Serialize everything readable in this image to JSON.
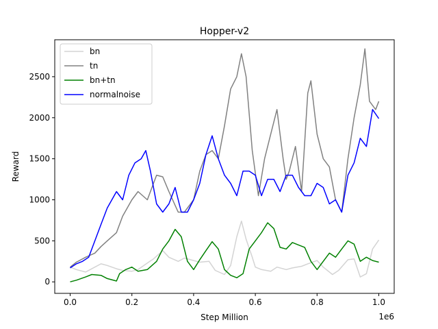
{
  "chart_data": {
    "type": "line",
    "title": "Hopper-v2",
    "xlabel": "Step Million",
    "ylabel": "Reward",
    "x_offset_label": "1e6",
    "xlim": [
      -0.05,
      1.05
    ],
    "ylim": [
      -140,
      2950
    ],
    "xticks": [
      0.0,
      0.2,
      0.4,
      0.6,
      0.8,
      1.0
    ],
    "xtick_labels": [
      "0.0",
      "0.2",
      "0.4",
      "0.6",
      "0.8",
      "1.0"
    ],
    "yticks": [
      0,
      500,
      1000,
      1500,
      2000,
      2500
    ],
    "ytick_labels": [
      "0",
      "500",
      "1000",
      "1500",
      "2000",
      "2500"
    ],
    "legend_position": "upper-left",
    "grid": false,
    "series": [
      {
        "name": "bn",
        "color": "#d3d3d3",
        "x": [
          0.0,
          0.02,
          0.05,
          0.08,
          0.1,
          0.12,
          0.15,
          0.17,
          0.2,
          0.22,
          0.25,
          0.27,
          0.3,
          0.32,
          0.35,
          0.37,
          0.4,
          0.42,
          0.45,
          0.47,
          0.5,
          0.52,
          0.54,
          0.555,
          0.57,
          0.59,
          0.6,
          0.62,
          0.65,
          0.67,
          0.7,
          0.72,
          0.75,
          0.77,
          0.8,
          0.82,
          0.85,
          0.87,
          0.9,
          0.92,
          0.94,
          0.96,
          0.98,
          1.0
        ],
        "y": [
          180,
          150,
          120,
          180,
          220,
          200,
          160,
          140,
          130,
          150,
          230,
          280,
          380,
          300,
          250,
          290,
          260,
          240,
          250,
          140,
          90,
          200,
          550,
          740,
          520,
          300,
          180,
          150,
          130,
          180,
          150,
          170,
          190,
          220,
          260,
          180,
          90,
          140,
          270,
          280,
          60,
          100,
          400,
          510
        ]
      },
      {
        "name": "tn",
        "color": "#808080",
        "x": [
          0.0,
          0.02,
          0.05,
          0.08,
          0.1,
          0.12,
          0.15,
          0.17,
          0.2,
          0.22,
          0.25,
          0.27,
          0.28,
          0.3,
          0.32,
          0.35,
          0.37,
          0.4,
          0.42,
          0.44,
          0.46,
          0.48,
          0.5,
          0.52,
          0.54,
          0.555,
          0.57,
          0.59,
          0.61,
          0.63,
          0.65,
          0.67,
          0.69,
          0.7,
          0.71,
          0.73,
          0.75,
          0.77,
          0.78,
          0.8,
          0.82,
          0.84,
          0.86,
          0.88,
          0.9,
          0.92,
          0.94,
          0.955,
          0.97,
          0.99,
          1.0
        ],
        "y": [
          180,
          240,
          300,
          350,
          430,
          500,
          600,
          800,
          1000,
          1100,
          1000,
          1200,
          1300,
          1280,
          1100,
          850,
          850,
          1000,
          1350,
          1550,
          1600,
          1500,
          1900,
          2350,
          2500,
          2780,
          2500,
          1600,
          1050,
          1500,
          1800,
          2100,
          1500,
          1250,
          1350,
          1650,
          1100,
          2300,
          2450,
          1800,
          1500,
          1400,
          1000,
          850,
          1500,
          2000,
          2400,
          2840,
          2200,
          2100,
          2200
        ]
      },
      {
        "name": "bn+tn",
        "color": "#008000",
        "x": [
          0.0,
          0.02,
          0.05,
          0.07,
          0.1,
          0.12,
          0.15,
          0.16,
          0.18,
          0.2,
          0.22,
          0.25,
          0.28,
          0.3,
          0.32,
          0.34,
          0.36,
          0.38,
          0.4,
          0.42,
          0.44,
          0.46,
          0.48,
          0.5,
          0.52,
          0.54,
          0.56,
          0.58,
          0.6,
          0.62,
          0.64,
          0.66,
          0.68,
          0.7,
          0.72,
          0.74,
          0.76,
          0.78,
          0.8,
          0.82,
          0.84,
          0.86,
          0.88,
          0.9,
          0.92,
          0.94,
          0.96,
          0.98,
          1.0
        ],
        "y": [
          0,
          20,
          60,
          90,
          80,
          40,
          10,
          100,
          150,
          180,
          130,
          150,
          250,
          400,
          500,
          640,
          550,
          250,
          150,
          270,
          380,
          490,
          400,
          150,
          80,
          50,
          100,
          400,
          500,
          600,
          720,
          650,
          420,
          400,
          480,
          450,
          420,
          250,
          150,
          250,
          350,
          300,
          400,
          500,
          460,
          250,
          300,
          260,
          240
        ]
      },
      {
        "name": "normalnoise",
        "color": "#0000ff",
        "x": [
          0.0,
          0.02,
          0.04,
          0.06,
          0.08,
          0.1,
          0.12,
          0.15,
          0.17,
          0.19,
          0.21,
          0.23,
          0.245,
          0.26,
          0.28,
          0.3,
          0.32,
          0.34,
          0.36,
          0.38,
          0.4,
          0.42,
          0.44,
          0.46,
          0.48,
          0.5,
          0.52,
          0.54,
          0.56,
          0.58,
          0.6,
          0.62,
          0.64,
          0.66,
          0.68,
          0.7,
          0.72,
          0.74,
          0.76,
          0.78,
          0.8,
          0.82,
          0.84,
          0.86,
          0.88,
          0.9,
          0.92,
          0.94,
          0.96,
          0.98,
          1.0
        ],
        "y": [
          170,
          220,
          250,
          300,
          500,
          700,
          900,
          1100,
          1000,
          1300,
          1450,
          1500,
          1600,
          1350,
          950,
          850,
          950,
          1150,
          850,
          850,
          1000,
          1200,
          1550,
          1780,
          1500,
          1300,
          1200,
          1050,
          1350,
          1350,
          1300,
          1050,
          1250,
          1250,
          1100,
          1300,
          1300,
          1150,
          1050,
          1050,
          1200,
          1150,
          950,
          1000,
          850,
          1300,
          1450,
          1750,
          1650,
          2100,
          1990
        ]
      }
    ]
  }
}
